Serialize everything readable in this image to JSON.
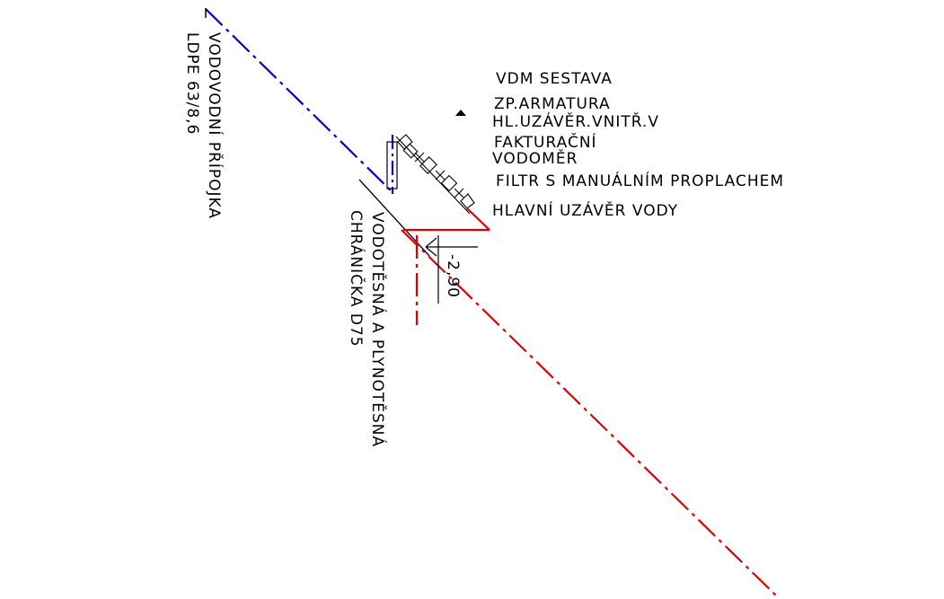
{
  "labels": {
    "vdm_sestava": "VDM SESTAVA",
    "zp_armatura": "ZP.ARMATURA",
    "hl_uzaver_vnitr": "HL.UZÁVĚR.VNITŘ.V",
    "fakturacni": "FAKTURAČNÍ",
    "vodomer": "VODOMĚR",
    "filtr": "FILTR S MANUÁLNÍM PROPLACHEM",
    "hlavni_uzaver": "HLAVNÍ UZÁVĚR VODY",
    "pripojka_line1": "VODOVODNÍ PŘÍPOJKA",
    "pripojka_line2": "LDPE 63/8,6",
    "chranicka_line1": "VODOTĚSNÁ A PLYNOTĚSNÁ",
    "chranicka_line2": "CHRÁNIČKA D75",
    "level": "-2,90"
  },
  "colors": {
    "water_pipe": "#0000cc",
    "red_pipe": "#e00000",
    "linework": "#000000",
    "background": "#ffffff"
  }
}
